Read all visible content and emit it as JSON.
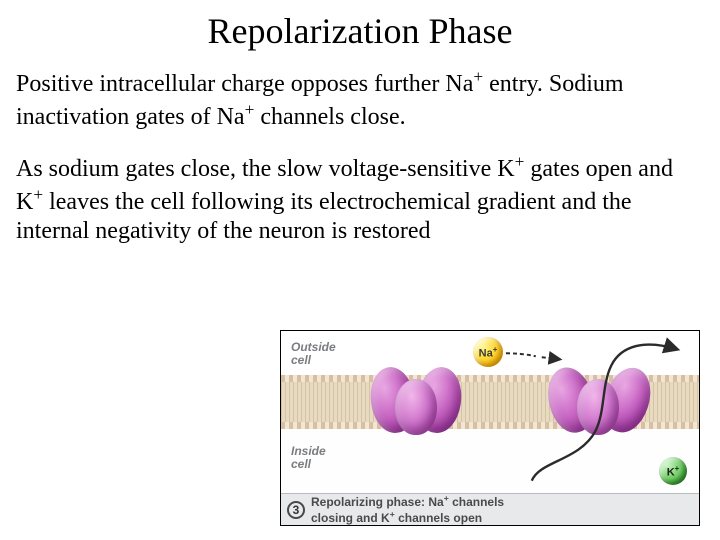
{
  "title": "Repolarization Phase",
  "paragraph1_html": "Positive intracellular charge opposes further Na<sup>+</sup> entry. Sodium inactivation gates of Na<sup>+</sup> channels close.",
  "paragraph2_html": "As sodium gates close, the slow voltage-sensitive K<sup>+</sup> gates open and K<sup>+</sup> leaves the cell following its electrochemical gradient and the internal negativity of the neuron is restored",
  "diagram": {
    "outside_label": "Outside\ncell",
    "inside_label": "Inside\ncell",
    "na_ion_label": "Na+",
    "k_ion_label": "K+",
    "caption_number": "3",
    "caption_line1": "Repolarizing phase: Na+ channels",
    "caption_line2": "closing and K+ channels open",
    "colors": {
      "membrane": "#e8d9c1",
      "channel_purple": "#b757b6",
      "na_ion": "#ffd832",
      "k_ion": "#6ecf62",
      "arrow": "#2b2b2b",
      "caption_bg": "#e8e9eb"
    }
  }
}
